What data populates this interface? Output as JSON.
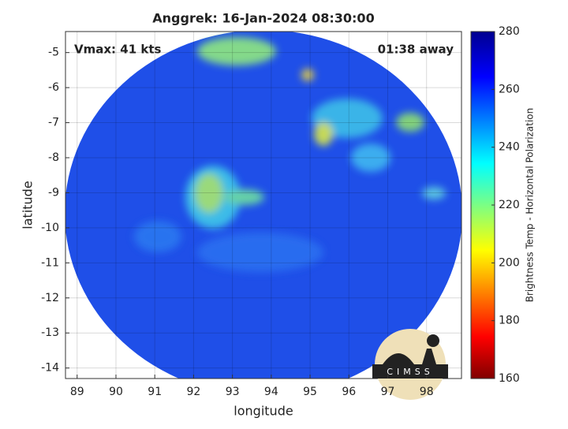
{
  "chart_data": {
    "type": "map",
    "title": "Anggrek: 16-Jan-2024 08:30:00",
    "annotations": [
      "Vmax: 41 kts",
      "01:38 away"
    ],
    "x_label": "longitude",
    "y_label": "latitude",
    "xlim": [
      88.7,
      98.9
    ],
    "xticks": [
      89,
      90,
      91,
      92,
      93,
      94,
      95,
      96,
      97,
      98
    ],
    "ylim": [
      -14.3,
      -4.4
    ],
    "yticks": [
      -14,
      -13,
      -12,
      -11,
      -10,
      -9,
      -8,
      -7,
      -6,
      -5
    ],
    "grid": true,
    "colorbar": {
      "label": "Brightness Temp - Horizontal Polarization",
      "lim": [
        160,
        280
      ],
      "ticks": [
        160,
        180,
        200,
        220,
        240,
        260,
        280
      ]
    },
    "logo": "CIMSS"
  }
}
